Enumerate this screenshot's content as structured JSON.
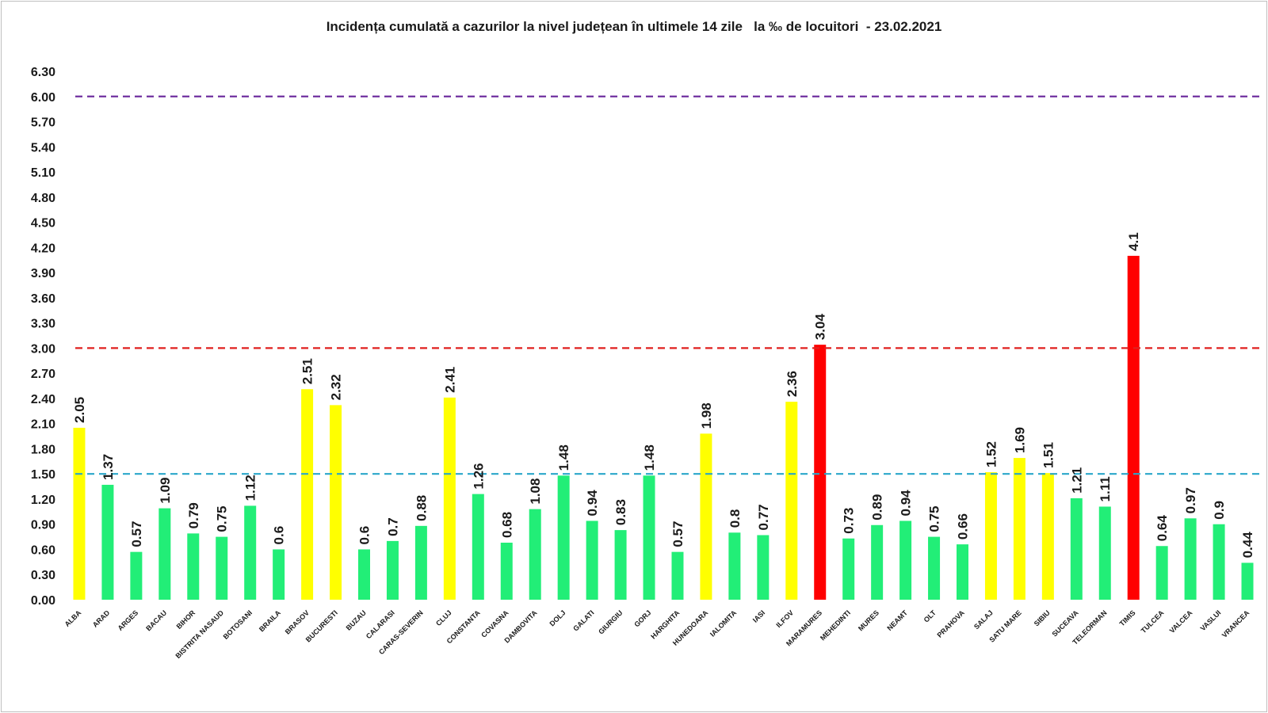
{
  "chart_data": {
    "type": "bar",
    "title": "Incidența cumulată a cazurilor la nivel județean în ultimele 14 zile   la ‰ de locuitori  - 23.02.2021",
    "xlabel": "",
    "ylabel": "",
    "ylim": [
      0,
      6.3
    ],
    "yticks": [
      "0.00",
      "0.30",
      "0.60",
      "0.90",
      "1.20",
      "1.50",
      "1.80",
      "2.10",
      "2.40",
      "2.70",
      "3.00",
      "3.30",
      "3.60",
      "3.90",
      "4.20",
      "4.50",
      "4.80",
      "5.10",
      "5.40",
      "5.70",
      "6.00",
      "6.30"
    ],
    "grid": false,
    "legend": "none",
    "categories": [
      "ALBA",
      "ARAD",
      "ARGES",
      "BACAU",
      "BIHOR",
      "BISTRITA NASAUD",
      "BOTOSANI",
      "BRAILA",
      "BRASOV",
      "BUCURESTI",
      "BUZAU",
      "CALARASI",
      "CARAS-SEVERIN",
      "CLUJ",
      "CONSTANTA",
      "COVASNA",
      "DAMBOVITA",
      "DOLJ",
      "GALATI",
      "GIURGIU",
      "GORJ",
      "HARGHITA",
      "HUNEDOARA",
      "IALOMITA",
      "IASI",
      "ILFOV",
      "MARAMURES",
      "MEHEDINTI",
      "MURES",
      "NEAMT",
      "OLT",
      "PRAHOVA",
      "SALAJ",
      "SATU MARE",
      "SIBIU",
      "SUCEAVA",
      "TELEORMAN",
      "TIMIS",
      "TULCEA",
      "VALCEA",
      "VASLUI",
      "VRANCEA"
    ],
    "values": [
      2.05,
      1.37,
      0.57,
      1.09,
      0.79,
      0.75,
      1.12,
      0.6,
      2.51,
      2.32,
      0.6,
      0.7,
      0.88,
      2.41,
      1.26,
      0.68,
      1.08,
      1.48,
      0.94,
      0.83,
      1.48,
      0.57,
      1.98,
      0.8,
      0.77,
      2.36,
      3.04,
      0.73,
      0.89,
      0.94,
      0.75,
      0.66,
      1.52,
      1.69,
      1.51,
      1.21,
      1.11,
      4.1,
      0.64,
      0.97,
      0.9,
      0.44
    ],
    "value_labels": [
      "2.05",
      "1.37",
      "0.57",
      "1.09",
      "0.79",
      "0.75",
      "1.12",
      "0.6",
      "2.51",
      "2.32",
      "0.6",
      "0.7",
      "0.88",
      "2.41",
      "1.26",
      "0.68",
      "1.08",
      "1.48",
      "0.94",
      "0.83",
      "1.48",
      "0.57",
      "1.98",
      "0.8",
      "0.77",
      "2.36",
      "3.04",
      "0.73",
      "0.89",
      "0.94",
      "0.75",
      "0.66",
      "1.52",
      "1.69",
      "1.51",
      "1.21",
      "1.11",
      "4.1",
      "0.64",
      "0.97",
      "0.9",
      "0.44"
    ],
    "bar_colors": [
      "#ffff00",
      "#22ee77",
      "#22ee77",
      "#22ee77",
      "#22ee77",
      "#22ee77",
      "#22ee77",
      "#22ee77",
      "#ffff00",
      "#ffff00",
      "#22ee77",
      "#22ee77",
      "#22ee77",
      "#ffff00",
      "#22ee77",
      "#22ee77",
      "#22ee77",
      "#22ee77",
      "#22ee77",
      "#22ee77",
      "#22ee77",
      "#22ee77",
      "#ffff00",
      "#22ee77",
      "#22ee77",
      "#ffff00",
      "#ff0000",
      "#22ee77",
      "#22ee77",
      "#22ee77",
      "#22ee77",
      "#22ee77",
      "#ffff00",
      "#ffff00",
      "#ffff00",
      "#22ee77",
      "#22ee77",
      "#ff0000",
      "#22ee77",
      "#22ee77",
      "#22ee77",
      "#22ee77"
    ],
    "threshold_lines": [
      {
        "value": 6.0,
        "color": "#7030a0"
      },
      {
        "value": 3.0,
        "color": "#e0201f"
      },
      {
        "value": 1.5,
        "color": "#2aa7c9"
      }
    ]
  }
}
